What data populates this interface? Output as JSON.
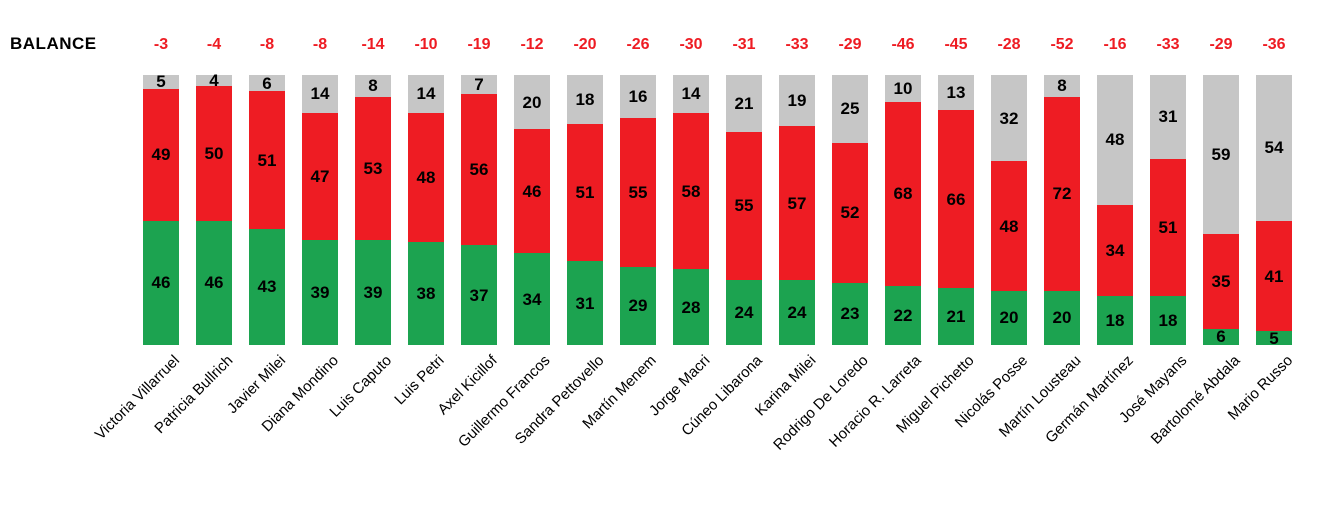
{
  "header": {
    "balance_label": "BALANCE"
  },
  "colors": {
    "green": "#1CA350",
    "red": "#EE1C23",
    "gray": "#C6C6C6",
    "balance_text": "#EE1C23",
    "label_text": "#000000",
    "background": "#FFFFFF"
  },
  "chart_data": {
    "type": "bar",
    "stacked": true,
    "orientation": "vertical",
    "ylim": [
      0,
      100
    ],
    "grid": false,
    "legend": "none",
    "categories": [
      "Victoria Villarruel",
      "Patricia Bullrich",
      "Javier Milei",
      "Diana Mondino",
      "Luis Caputo",
      "Luis Petri",
      "Axel Kicillof",
      "Guillermo Francos",
      "Sandra Pettovello",
      "Martín Menem",
      "Jorge Macri",
      "Cúneo Libarona",
      "Karina Milei",
      "Rodrigo De Loredo",
      "Horacio R. Larreta",
      "Miguel Pichetto",
      "Nicolás Posse",
      "Martín Lousteau",
      "Germán Martínez",
      "José Mayans",
      "Bartolomé Abdala",
      "Mario Russo"
    ],
    "series": [
      {
        "name": "positive",
        "color_key": "green",
        "values": [
          46,
          46,
          43,
          39,
          39,
          38,
          37,
          34,
          31,
          29,
          28,
          24,
          24,
          23,
          22,
          21,
          20,
          20,
          18,
          18,
          6,
          5
        ]
      },
      {
        "name": "negative",
        "color_key": "red",
        "values": [
          49,
          50,
          51,
          47,
          53,
          48,
          56,
          46,
          51,
          55,
          58,
          55,
          57,
          52,
          68,
          66,
          48,
          72,
          34,
          51,
          35,
          41
        ]
      },
      {
        "name": "no_opinion",
        "color_key": "gray",
        "values": [
          5,
          4,
          6,
          14,
          8,
          14,
          7,
          20,
          18,
          16,
          14,
          21,
          19,
          25,
          10,
          13,
          32,
          8,
          48,
          31,
          59,
          54
        ]
      }
    ],
    "balance": [
      -3,
      -4,
      -8,
      -8,
      -14,
      -10,
      -19,
      -12,
      -20,
      -26,
      -30,
      -31,
      -33,
      -29,
      -46,
      -45,
      -28,
      -52,
      -16,
      -33,
      -29,
      -36
    ]
  }
}
